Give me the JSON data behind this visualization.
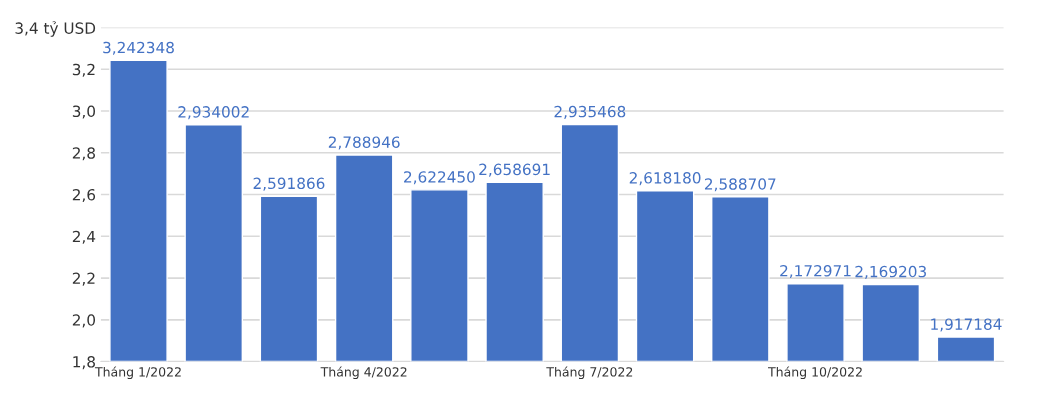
{
  "chart_data": {
    "type": "bar",
    "categories": [
      "Tháng 1/2022",
      null,
      null,
      "Tháng 4/2022",
      null,
      null,
      "Tháng 7/2022",
      null,
      null,
      "Tháng 10/2022",
      null,
      null
    ],
    "values": [
      3.242348,
      2.934002,
      2.591866,
      2.788946,
      2.62245,
      2.658691,
      2.935468,
      2.61818,
      2.588707,
      2.172971,
      2.169203,
      1.917184
    ],
    "value_labels": [
      "3,242348",
      "2,934002",
      "2,591866",
      "2,788946",
      "2,622450",
      "2,658691",
      "2,935468",
      "2,618180",
      "2,588707",
      "2,172971",
      "2,169203",
      "1,917184"
    ],
    "color": "#4472c4",
    "ylim": [
      1.8,
      3.4
    ],
    "yticks": [
      {
        "value": 1.8,
        "label": "1,8"
      },
      {
        "value": 2.0,
        "label": "2,0"
      },
      {
        "value": 2.2,
        "label": "2,2"
      },
      {
        "value": 2.4,
        "label": "2,4"
      },
      {
        "value": 2.6,
        "label": "2,6"
      },
      {
        "value": 2.8,
        "label": "2,8"
      },
      {
        "value": 3.0,
        "label": "3,0"
      },
      {
        "value": 3.2,
        "label": "3,2"
      },
      {
        "value": 3.4,
        "label": "3,4 tỷ USD"
      }
    ],
    "grid": "y"
  }
}
